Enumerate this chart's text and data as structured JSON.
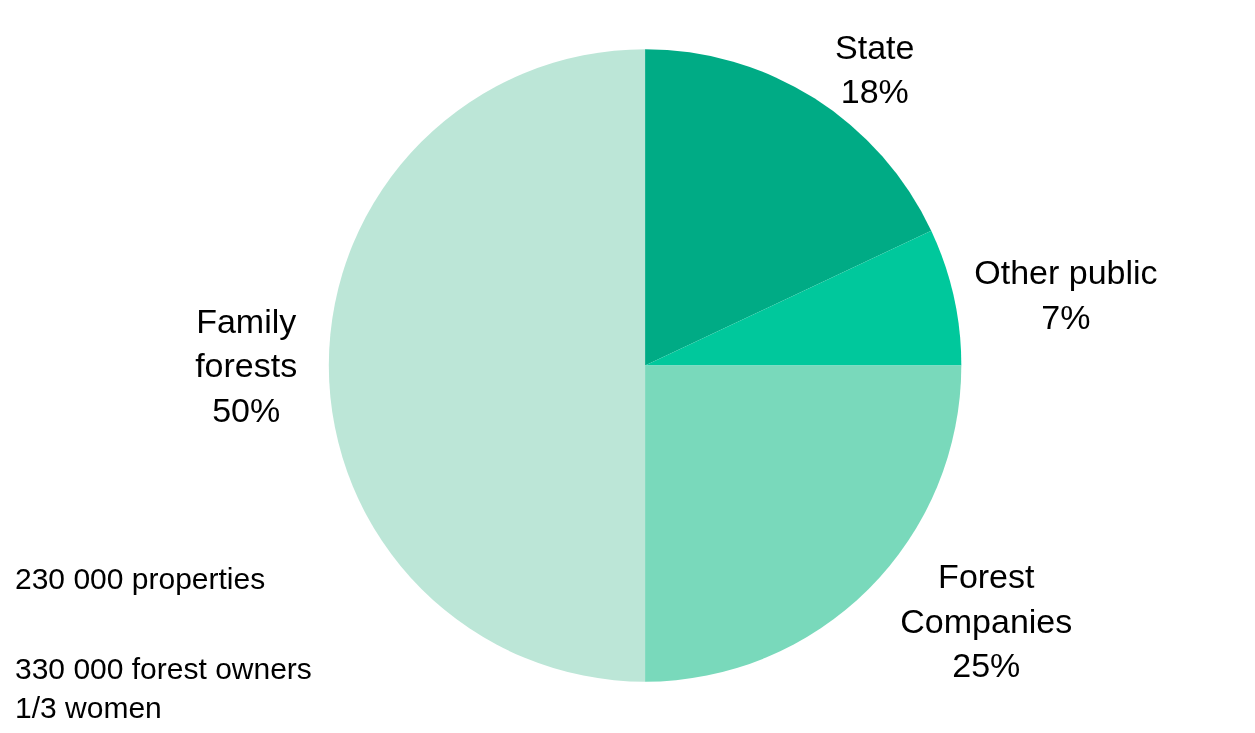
{
  "chart_data": {
    "type": "pie",
    "categories": [
      "State",
      "Other public",
      "Forest Companies",
      "Family forests"
    ],
    "values": [
      18,
      7,
      25,
      50
    ],
    "value_labels": [
      "18%",
      "7%",
      "25%",
      "50%"
    ],
    "colors": [
      "#00ab85",
      "#00c89c",
      "#79d9bb",
      "#bce6d7"
    ],
    "legend": false,
    "annotations": [
      "230 000 properties",
      "330 000 forest owners\n1/3 women"
    ]
  }
}
